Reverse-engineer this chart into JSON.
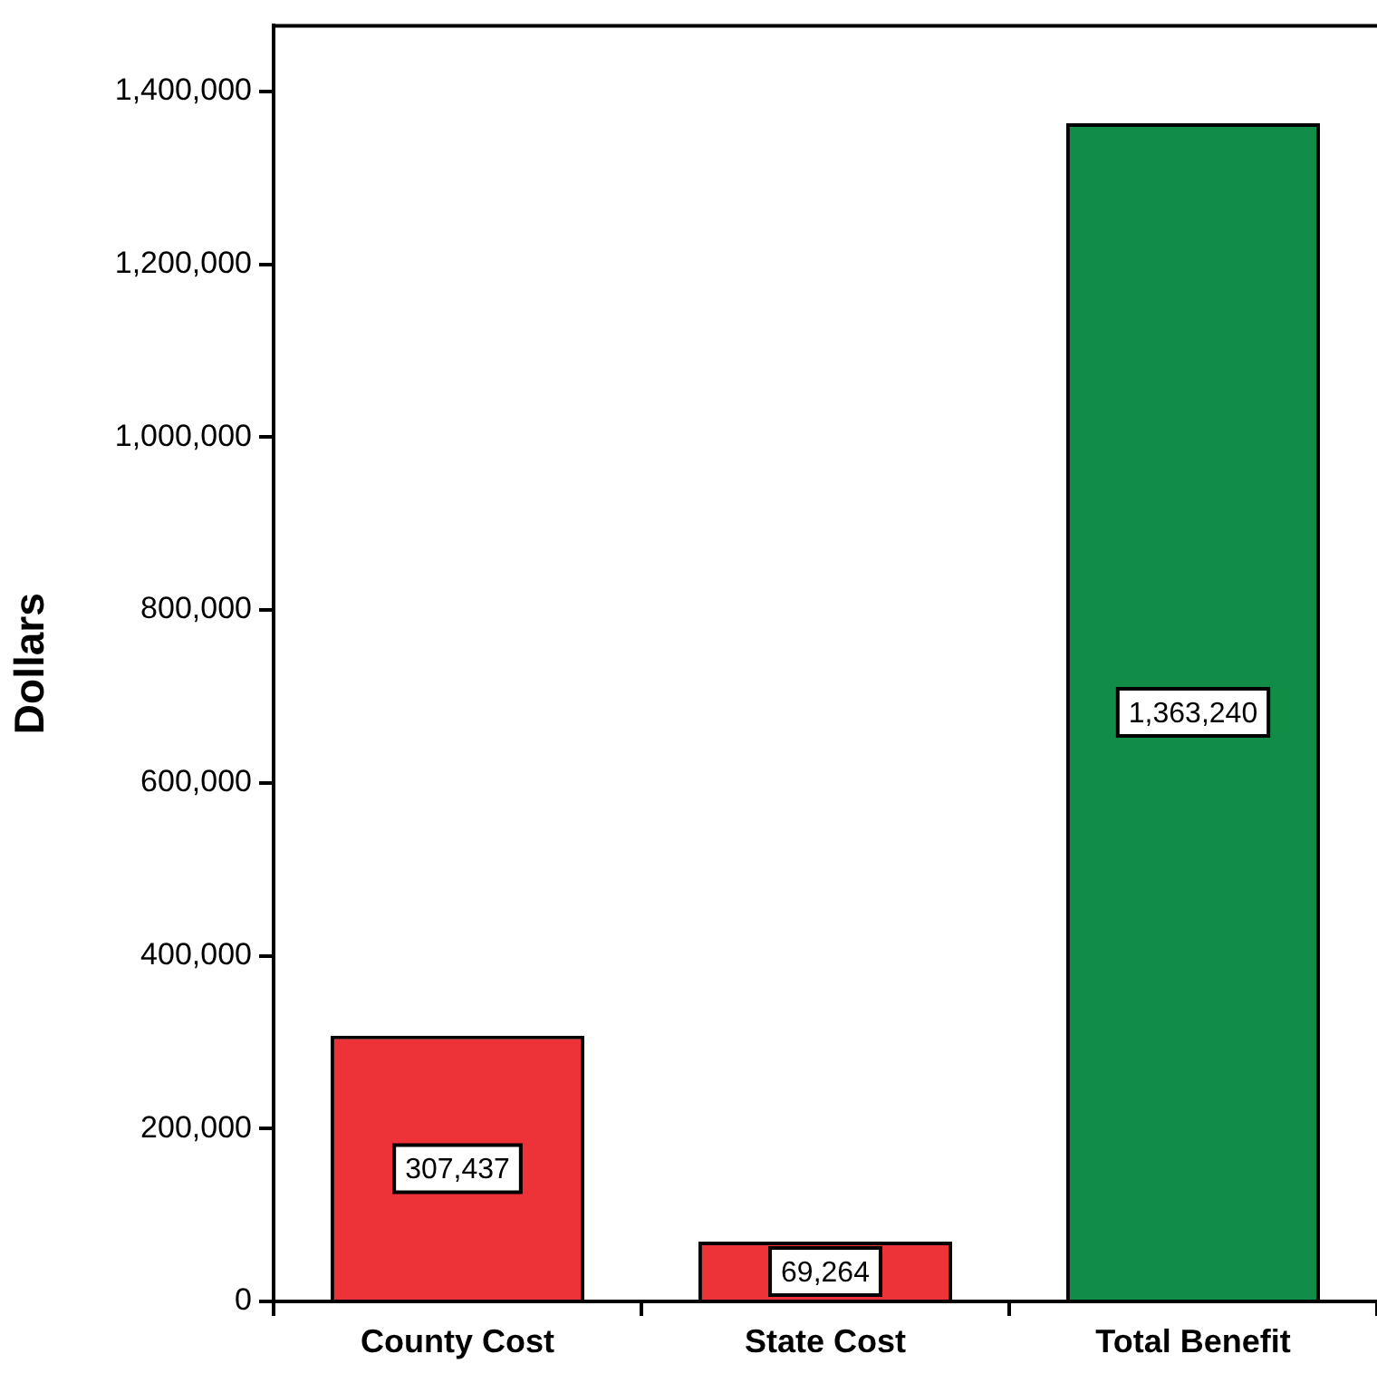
{
  "chart_data": {
    "type": "bar",
    "ylabel": "Dollars",
    "categories": [
      "County Cost",
      "State Cost",
      "Total Benefit"
    ],
    "values": [
      307437,
      69264,
      1363240
    ],
    "value_labels": [
      "307,437",
      "69,264",
      "1,363,240"
    ],
    "colors": [
      "#ee3338",
      "#ee3338",
      "#118d47"
    ],
    "ylim": [
      0,
      1476000
    ],
    "yticks": [
      {
        "value": 0,
        "label": "0"
      },
      {
        "value": 200000,
        "label": "200,000"
      },
      {
        "value": 400000,
        "label": "400,000"
      },
      {
        "value": 600000,
        "label": "600,000"
      },
      {
        "value": 800000,
        "label": "800,000"
      },
      {
        "value": 1000000,
        "label": "1,000,000"
      },
      {
        "value": 1200000,
        "label": "1,200,000"
      },
      {
        "value": 1400000,
        "label": "1,400,000"
      }
    ],
    "grid": false,
    "legend": false
  }
}
